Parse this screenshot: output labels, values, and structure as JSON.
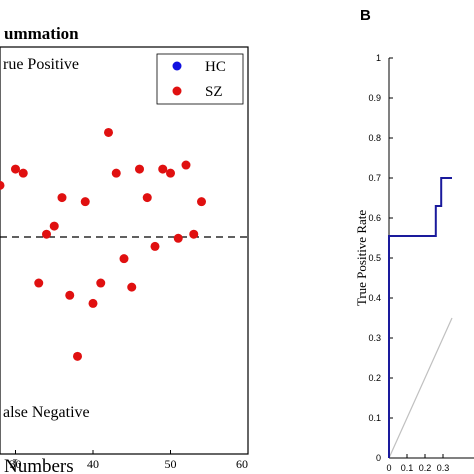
{
  "colors": {
    "hc": "#1010e0",
    "sz": "#e01010",
    "roc_line": "#1a1a9c",
    "diagonal": "#c0c0c0",
    "axis": "#000000"
  },
  "chart_data": [
    {
      "type": "scatter",
      "title": "ummation",
      "xlabel": "Numbers",
      "ylabel": "",
      "xlim": [
        28,
        60
      ],
      "x_ticks": [
        "30",
        "40",
        "50",
        "60"
      ],
      "annotations": {
        "top": "rue Positive",
        "bottom": "alse Negative"
      },
      "threshold_line": "dashed horizontal at decision boundary",
      "legend": {
        "placement": "top-right",
        "entries": [
          "HC",
          "SZ"
        ]
      },
      "series": [
        {
          "name": "SZ",
          "x": [
            28,
            30,
            31,
            33,
            34,
            35,
            36,
            37,
            38,
            39,
            40,
            41,
            42,
            43,
            44,
            45,
            46,
            47,
            48,
            49,
            50,
            51,
            52,
            53,
            54
          ],
          "y": [
            0.66,
            0.7,
            0.69,
            0.42,
            0.54,
            0.56,
            0.63,
            0.39,
            0.24,
            0.62,
            0.37,
            0.42,
            0.79,
            0.69,
            0.48,
            0.41,
            0.7,
            0.63,
            0.51,
            0.7,
            0.69,
            0.53,
            0.71,
            0.54,
            0.62
          ]
        },
        {
          "name": "HC",
          "x": [],
          "y": []
        }
      ]
    },
    {
      "type": "line",
      "panel_label": "B",
      "ylabel": "True Positive Rate",
      "xlabel": "",
      "xlim": [
        0,
        0.35
      ],
      "ylim": [
        0,
        1
      ],
      "x_ticks": [
        "0",
        "0.1",
        "0.2",
        "0.3"
      ],
      "y_ticks": [
        "0",
        "0.1",
        "0.2",
        "0.3",
        "0.4",
        "0.5",
        "0.6",
        "0.7",
        "0.8",
        "0.9",
        "1"
      ],
      "series": [
        {
          "name": "",
          "x": [
            0,
            0,
            0.26,
            0.26,
            0.29,
            0.29,
            0.35
          ],
          "y": [
            0,
            0.555,
            0.555,
            0.63,
            0.63,
            0.7,
            0.7
          ]
        }
      ],
      "diagonal": {
        "x": [
          0,
          0.35
        ],
        "y": [
          0,
          0.35
        ]
      }
    }
  ]
}
